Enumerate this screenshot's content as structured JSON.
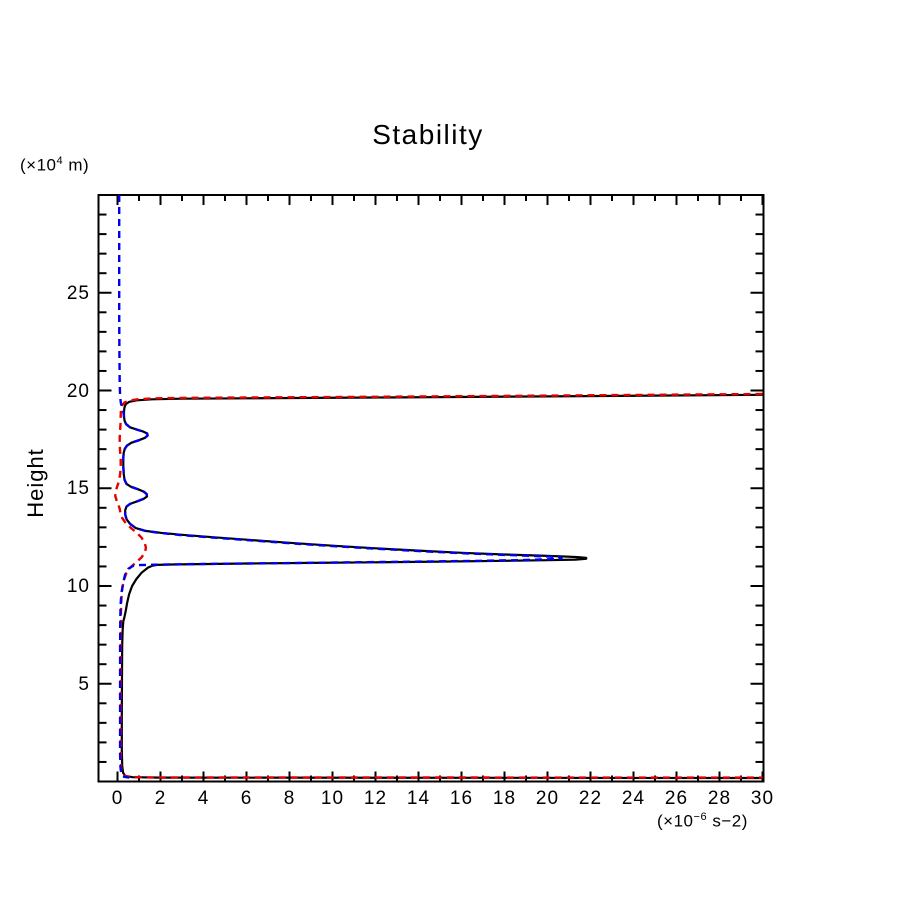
{
  "chart_data": {
    "type": "line",
    "title": "Stability",
    "x_axis": {
      "unit_pre": "(×10",
      "unit_sup": "−6",
      "unit_post": " s−2)",
      "tick_labels": [
        0,
        2,
        4,
        6,
        8,
        10,
        12,
        14,
        16,
        18,
        20,
        22,
        24,
        26,
        28,
        30
      ],
      "minor_tick_step": 1,
      "minor_tick_min": 0,
      "minor_tick_max": 30,
      "range": [
        -0.9,
        30.1
      ],
      "grid": false
    },
    "y_axis": {
      "label": "Height",
      "unit_pre": "(×10",
      "unit_sup": "4",
      "unit_post": " m)",
      "tick_labels": [
        5,
        10,
        15,
        20,
        25
      ],
      "minor_tick_step": 1,
      "minor_tick_min": 1,
      "minor_tick_max": 29,
      "range": [
        0,
        30
      ],
      "grid": false
    },
    "legend": "none",
    "series": [
      {
        "name": "stability-profile-solid",
        "color": "#000000",
        "style": "solid",
        "points": [
          [
            30,
            19.78
          ],
          [
            20,
            19.7
          ],
          [
            12,
            19.64
          ],
          [
            6,
            19.6
          ],
          [
            3,
            19.58
          ],
          [
            1.6,
            19.55
          ],
          [
            0.9,
            19.5
          ],
          [
            0.55,
            19.42
          ],
          [
            0.38,
            19.3
          ],
          [
            0.32,
            19.12
          ],
          [
            0.3,
            18.9
          ],
          [
            0.3,
            18.65
          ],
          [
            0.33,
            18.45
          ],
          [
            0.4,
            18.28
          ],
          [
            0.58,
            18.12
          ],
          [
            0.9,
            18.0
          ],
          [
            1.2,
            17.9
          ],
          [
            1.38,
            17.8
          ],
          [
            1.4,
            17.7
          ],
          [
            1.28,
            17.58
          ],
          [
            1.0,
            17.46
          ],
          [
            0.65,
            17.33
          ],
          [
            0.44,
            17.18
          ],
          [
            0.34,
            17.02
          ],
          [
            0.29,
            16.82
          ],
          [
            0.27,
            16.55
          ],
          [
            0.27,
            16.15
          ],
          [
            0.29,
            15.75
          ],
          [
            0.33,
            15.42
          ],
          [
            0.42,
            15.22
          ],
          [
            0.62,
            15.08
          ],
          [
            0.95,
            14.95
          ],
          [
            1.22,
            14.83
          ],
          [
            1.36,
            14.7
          ],
          [
            1.37,
            14.58
          ],
          [
            1.22,
            14.46
          ],
          [
            0.92,
            14.33
          ],
          [
            0.58,
            14.2
          ],
          [
            0.42,
            14.06
          ],
          [
            0.36,
            13.88
          ],
          [
            0.36,
            13.66
          ],
          [
            0.42,
            13.42
          ],
          [
            0.58,
            13.18
          ],
          [
            0.85,
            12.96
          ],
          [
            1.3,
            12.82
          ],
          [
            2.0,
            12.72
          ],
          [
            3.0,
            12.62
          ],
          [
            4.5,
            12.49
          ],
          [
            6.0,
            12.37
          ],
          [
            8.0,
            12.21
          ],
          [
            10.0,
            12.06
          ],
          [
            12.0,
            11.93
          ],
          [
            14.0,
            11.81
          ],
          [
            16.0,
            11.7
          ],
          [
            18.0,
            11.61
          ],
          [
            19.5,
            11.56
          ],
          [
            20.6,
            11.52
          ],
          [
            21.4,
            11.48
          ],
          [
            21.8,
            11.44
          ],
          [
            21.8,
            11.39
          ],
          [
            21.3,
            11.35
          ],
          [
            20.0,
            11.32
          ],
          [
            18.0,
            11.29
          ],
          [
            15.0,
            11.25
          ],
          [
            12.0,
            11.21
          ],
          [
            9.0,
            11.18
          ],
          [
            6.0,
            11.15
          ],
          [
            3.8,
            11.12
          ],
          [
            2.5,
            11.1
          ],
          [
            1.85,
            11.08
          ],
          [
            1.62,
            11.04
          ],
          [
            1.42,
            10.94
          ],
          [
            1.12,
            10.68
          ],
          [
            0.88,
            10.36
          ],
          [
            0.68,
            10.0
          ],
          [
            0.54,
            9.58
          ],
          [
            0.45,
            9.15
          ],
          [
            0.38,
            8.72
          ],
          [
            0.32,
            8.4
          ],
          [
            0.27,
            8.2
          ],
          [
            0.24,
            7.8
          ],
          [
            0.22,
            7.0
          ],
          [
            0.21,
            5.5
          ],
          [
            0.2,
            3.5
          ],
          [
            0.2,
            1.6
          ],
          [
            0.22,
            0.8
          ],
          [
            0.26,
            0.45
          ],
          [
            0.36,
            0.28
          ],
          [
            0.7,
            0.22
          ],
          [
            2.0,
            0.2
          ],
          [
            30,
            0.18
          ]
        ]
      },
      {
        "name": "stability-profile-red-dashed",
        "color": "#e60000",
        "style": "dashed",
        "points": [
          [
            30,
            19.82
          ],
          [
            20,
            19.74
          ],
          [
            12,
            19.68
          ],
          [
            6,
            19.64
          ],
          [
            3,
            19.62
          ],
          [
            1.8,
            19.6
          ],
          [
            1.0,
            19.56
          ],
          [
            0.55,
            19.49
          ],
          [
            0.32,
            19.38
          ],
          [
            0.2,
            19.22
          ],
          [
            0.16,
            19.0
          ],
          [
            0.15,
            18.7
          ],
          [
            0.14,
            18.3
          ],
          [
            0.12,
            17.95
          ],
          [
            0.1,
            17.6
          ],
          [
            0.1,
            17.25
          ],
          [
            0.12,
            16.9
          ],
          [
            0.15,
            16.5
          ],
          [
            0.15,
            16.1
          ],
          [
            0.12,
            15.7
          ],
          [
            0.05,
            15.3
          ],
          [
            -0.04,
            15.0
          ],
          [
            -0.1,
            14.8
          ],
          [
            -0.1,
            14.6
          ],
          [
            -0.04,
            14.38
          ],
          [
            0.04,
            14.15
          ],
          [
            0.1,
            13.95
          ],
          [
            0.14,
            13.72
          ],
          [
            0.22,
            13.48
          ],
          [
            0.38,
            13.22
          ],
          [
            0.62,
            12.97
          ],
          [
            0.9,
            12.72
          ],
          [
            1.12,
            12.47
          ],
          [
            1.26,
            12.22
          ],
          [
            1.32,
            11.97
          ],
          [
            1.28,
            11.72
          ],
          [
            1.12,
            11.47
          ],
          [
            0.88,
            11.22
          ],
          [
            0.62,
            10.97
          ],
          [
            0.42,
            10.68
          ],
          [
            0.3,
            10.32
          ],
          [
            0.23,
            9.92
          ],
          [
            0.19,
            9.52
          ],
          [
            0.17,
            9.1
          ],
          [
            0.16,
            8.6
          ],
          [
            0.15,
            7.8
          ],
          [
            0.15,
            6.0
          ],
          [
            0.15,
            4.0
          ],
          [
            0.15,
            2.0
          ],
          [
            0.16,
            1.0
          ],
          [
            0.18,
            0.55
          ],
          [
            0.24,
            0.32
          ],
          [
            0.45,
            0.24
          ],
          [
            1.2,
            0.21
          ],
          [
            30,
            0.2
          ]
        ]
      },
      {
        "name": "stability-profile-blue-dashed",
        "color": "#0000e6",
        "style": "dashed",
        "points": [
          [
            0.08,
            30.0
          ],
          [
            0.08,
            27.0
          ],
          [
            0.08,
            24.0
          ],
          [
            0.09,
            22.0
          ],
          [
            0.1,
            20.4
          ],
          [
            0.12,
            19.7
          ],
          [
            0.16,
            19.35
          ],
          [
            0.24,
            19.05
          ],
          [
            0.29,
            18.8
          ],
          [
            0.3,
            18.65
          ],
          [
            0.33,
            18.45
          ],
          [
            0.4,
            18.28
          ],
          [
            0.58,
            18.12
          ],
          [
            0.9,
            18.0
          ],
          [
            1.2,
            17.9
          ],
          [
            1.38,
            17.8
          ],
          [
            1.4,
            17.7
          ],
          [
            1.28,
            17.58
          ],
          [
            1.0,
            17.46
          ],
          [
            0.65,
            17.33
          ],
          [
            0.44,
            17.18
          ],
          [
            0.34,
            17.02
          ],
          [
            0.29,
            16.82
          ],
          [
            0.27,
            16.55
          ],
          [
            0.27,
            16.15
          ],
          [
            0.29,
            15.75
          ],
          [
            0.33,
            15.42
          ],
          [
            0.42,
            15.22
          ],
          [
            0.62,
            15.08
          ],
          [
            0.95,
            14.95
          ],
          [
            1.22,
            14.83
          ],
          [
            1.36,
            14.7
          ],
          [
            1.37,
            14.58
          ],
          [
            1.22,
            14.46
          ],
          [
            0.92,
            14.33
          ],
          [
            0.58,
            14.2
          ],
          [
            0.42,
            14.06
          ],
          [
            0.36,
            13.88
          ],
          [
            0.36,
            13.66
          ],
          [
            0.42,
            13.42
          ],
          [
            0.58,
            13.18
          ],
          [
            0.85,
            12.96
          ],
          [
            1.3,
            12.82
          ],
          [
            2.0,
            12.71
          ],
          [
            3.0,
            12.6
          ],
          [
            4.5,
            12.47
          ],
          [
            6.0,
            12.35
          ],
          [
            8.0,
            12.19
          ],
          [
            10.0,
            12.04
          ],
          [
            12.0,
            11.91
          ],
          [
            14.0,
            11.79
          ],
          [
            16.0,
            11.68
          ],
          [
            18.0,
            11.59
          ],
          [
            19.3,
            11.54
          ],
          [
            20.2,
            11.5
          ],
          [
            20.65,
            11.46
          ],
          [
            20.65,
            11.41
          ],
          [
            20.1,
            11.37
          ],
          [
            19.0,
            11.33
          ],
          [
            17.0,
            11.29
          ],
          [
            14.0,
            11.25
          ],
          [
            11.0,
            11.21
          ],
          [
            8.0,
            11.17
          ],
          [
            5.0,
            11.14
          ],
          [
            3.0,
            11.11
          ],
          [
            1.7,
            11.09
          ],
          [
            1.0,
            11.07
          ],
          [
            0.7,
            11.02
          ],
          [
            0.5,
            10.88
          ],
          [
            0.36,
            10.6
          ],
          [
            0.27,
            10.2
          ],
          [
            0.2,
            9.75
          ],
          [
            0.16,
            9.3
          ],
          [
            0.14,
            8.85
          ],
          [
            0.13,
            8.3
          ],
          [
            0.12,
            7.0
          ],
          [
            0.12,
            5.0
          ],
          [
            0.12,
            3.0
          ],
          [
            0.12,
            1.4
          ],
          [
            0.14,
            0.7
          ],
          [
            0.18,
            0.38
          ],
          [
            0.3,
            0.24
          ],
          [
            0.55,
            0.2
          ]
        ]
      }
    ]
  }
}
